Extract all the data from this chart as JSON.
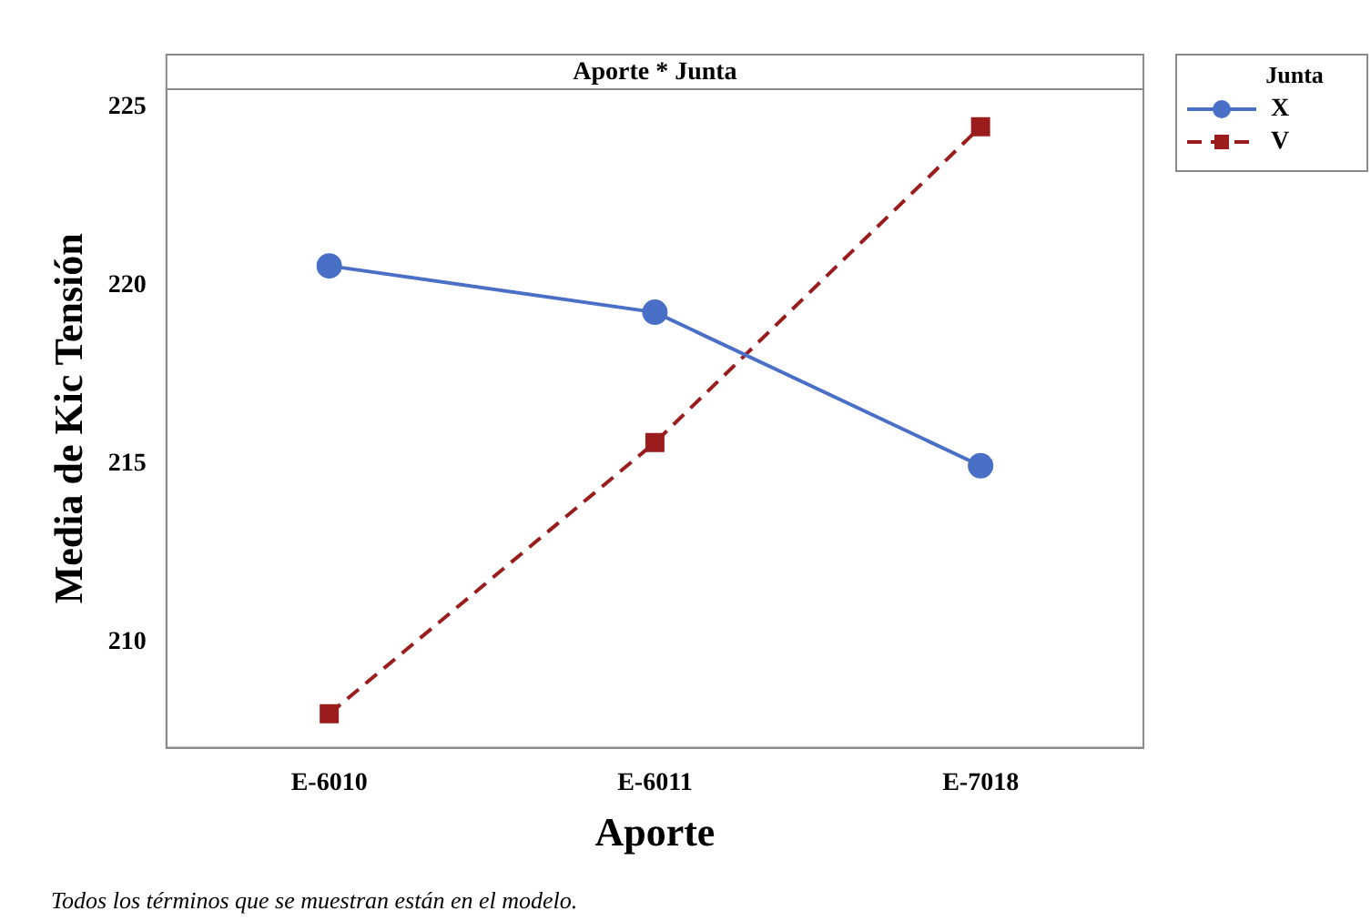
{
  "chart_data": {
    "type": "line",
    "title": "Aporte * Junta",
    "xlabel": "Aporte",
    "ylabel": "Media de Kic Tensión",
    "legend_title": "Junta",
    "legend": "top right",
    "grid": false,
    "categories": [
      "E-6010",
      "E-6011",
      "E-7018"
    ],
    "ylim": [
      207.05,
      225.5
    ],
    "yticks": [
      210,
      215,
      220,
      225
    ],
    "series": [
      {
        "name": "X",
        "color": "#4a6fc7",
        "values": [
          220.55,
          219.25,
          214.95
        ],
        "marker": "circle",
        "line_style": "solid"
      },
      {
        "name": "V",
        "color": "#9b1c1c",
        "values": [
          208.0,
          215.6,
          224.45
        ],
        "marker": "square",
        "line_style": "dashed"
      }
    ],
    "annotations": [
      "Todos los términos que se muestran están en el modelo."
    ]
  }
}
